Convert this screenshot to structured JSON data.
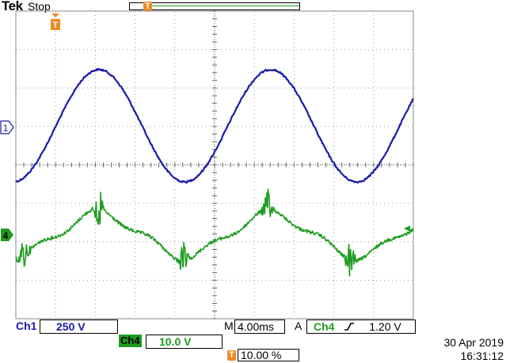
{
  "header": {
    "brand": "Tek",
    "acquisition_state": "Stop",
    "trigger_marker": "T"
  },
  "markers": {
    "trigger_level_top": "T",
    "ch1_marker": "1",
    "ch4_marker": "4"
  },
  "readouts": {
    "ch1_label": "Ch1",
    "ch1_scale": "250 V",
    "ch4_label": "Ch4",
    "ch4_scale": "10.0 V",
    "timebase_prefix": "M",
    "timebase": "4.00ms",
    "trigger_prefix": "A",
    "trigger_source": "Ch4",
    "trigger_level": "1.20 V",
    "trigger_position_icon": "T",
    "trigger_position": "10.00 %"
  },
  "datetime": {
    "date": "30 Apr 2019",
    "time": "16:31:12"
  },
  "colors": {
    "ch1": "#1a1aa8",
    "ch4": "#1f9c1f",
    "trigger": "#f08a24"
  },
  "icons": {
    "trigger_slope": "rising-edge-icon"
  }
}
